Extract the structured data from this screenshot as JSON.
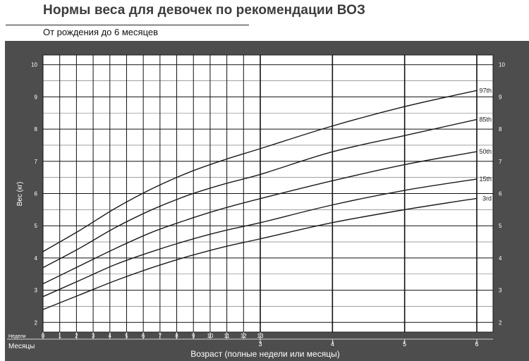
{
  "title": "Нормы веса для девочек по рекомендации ВОЗ",
  "subtitle": "От рождения до 6 месяцев",
  "chart_data": {
    "type": "line",
    "title": "Нормы веса для девочек по рекомендации ВОЗ",
    "subtitle": "От рождения до 6 месяцев",
    "xlabel": "Возраст (полные недели или месяцы)",
    "ylabel": "Вес (кг)",
    "x_unit": "months",
    "xlim": [
      0,
      6
    ],
    "ylim": [
      1.7,
      10.3
    ],
    "grid": true,
    "week_axis_label": "Недели",
    "month_axis_label": "Месяцы",
    "week_ticks": [
      "0",
      "1",
      "2",
      "3",
      "4",
      "5",
      "6",
      "7",
      "8",
      "9",
      "10",
      "11",
      "12",
      "13"
    ],
    "month_ticks": [
      "3",
      "4",
      "5",
      "6"
    ],
    "y_ticks": [
      "2",
      "3",
      "4",
      "5",
      "6",
      "7",
      "8",
      "9",
      "10"
    ],
    "series": [
      {
        "name": "97th",
        "x": [
          0,
          0.5,
          1,
          1.5,
          2,
          2.5,
          3,
          4,
          5,
          6
        ],
        "values": [
          4.2,
          4.85,
          5.55,
          6.15,
          6.65,
          7.05,
          7.4,
          8.1,
          8.7,
          9.2
        ]
      },
      {
        "name": "85th",
        "x": [
          0,
          0.5,
          1,
          1.5,
          2,
          2.5,
          3,
          4,
          5,
          6
        ],
        "values": [
          3.7,
          4.3,
          4.95,
          5.5,
          5.95,
          6.3,
          6.6,
          7.3,
          7.8,
          8.3
        ]
      },
      {
        "name": "50th",
        "x": [
          0,
          0.5,
          1,
          1.5,
          2,
          2.5,
          3,
          4,
          5,
          6
        ],
        "values": [
          3.2,
          3.75,
          4.3,
          4.8,
          5.2,
          5.55,
          5.85,
          6.4,
          6.9,
          7.3
        ]
      },
      {
        "name": "15th",
        "x": [
          0,
          0.5,
          1,
          1.5,
          2,
          2.5,
          3,
          4,
          5,
          6
        ],
        "values": [
          2.8,
          3.3,
          3.8,
          4.2,
          4.55,
          4.85,
          5.1,
          5.65,
          6.1,
          6.45
        ]
      },
      {
        "name": "3rd",
        "x": [
          0,
          0.5,
          1,
          1.5,
          2,
          2.5,
          3,
          4,
          5,
          6
        ],
        "values": [
          2.4,
          2.85,
          3.3,
          3.7,
          4.05,
          4.35,
          4.6,
          5.1,
          5.5,
          5.85
        ]
      }
    ],
    "colors": {
      "background": "#4d4d4d",
      "plot_area": "#ffffff",
      "curve": "#1a1a1a",
      "grid_minor": "#666666",
      "grid_major": "#111111"
    }
  }
}
